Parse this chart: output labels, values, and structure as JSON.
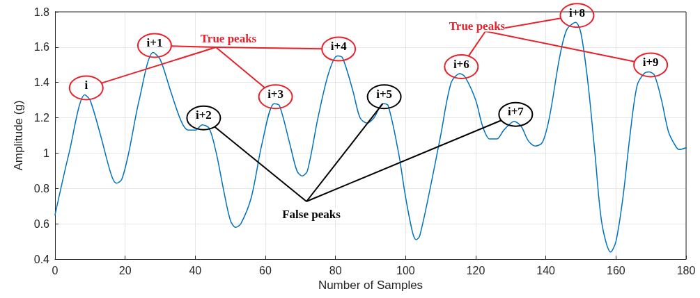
{
  "chart_data": {
    "type": "line",
    "xlabel": "Number of Samples",
    "ylabel": "Amplitude (g)",
    "x": [
      0,
      4,
      8.5,
      10,
      13,
      16,
      17.5,
      19,
      21,
      24,
      28,
      30,
      33,
      36,
      38,
      40,
      42,
      44,
      46,
      48,
      50,
      51.5,
      53,
      56,
      59,
      62.5,
      64,
      67,
      69,
      70.5,
      72,
      75,
      78,
      80.5,
      82,
      85,
      87,
      89,
      91,
      93.5,
      95,
      98,
      100,
      102,
      103,
      104,
      107,
      110,
      113,
      115.5,
      117,
      120,
      122,
      124,
      126,
      128,
      131,
      133,
      135,
      137,
      139,
      141,
      144,
      146,
      148.5,
      150,
      152,
      154,
      156,
      158.5,
      160,
      162,
      164,
      166,
      168,
      169.5,
      171,
      173,
      175,
      177,
      178,
      180
    ],
    "series": [
      {
        "color": "#0072bd",
        "values": [
          0.65,
          1.0,
          1.33,
          1.3,
          1.1,
          0.88,
          0.83,
          0.85,
          1.0,
          1.3,
          1.57,
          1.53,
          1.35,
          1.18,
          1.13,
          1.13,
          1.16,
          1.14,
          1.0,
          0.8,
          0.62,
          0.58,
          0.6,
          0.75,
          1.05,
          1.28,
          1.27,
          1.05,
          0.9,
          0.87,
          0.9,
          1.2,
          1.45,
          1.55,
          1.54,
          1.35,
          1.2,
          1.17,
          1.2,
          1.28,
          1.27,
          1.0,
          0.75,
          0.55,
          0.51,
          0.53,
          0.8,
          1.1,
          1.4,
          1.45,
          1.43,
          1.3,
          1.15,
          1.08,
          1.08,
          1.13,
          1.18,
          1.15,
          1.07,
          1.04,
          1.06,
          1.2,
          1.55,
          1.7,
          1.74,
          1.68,
          1.4,
          1.0,
          0.6,
          0.44,
          0.5,
          0.75,
          1.1,
          1.38,
          1.45,
          1.46,
          1.44,
          1.3,
          1.12,
          1.04,
          1.02,
          1.03
        ]
      }
    ],
    "xlim": [
      0,
      180
    ],
    "xticks": [
      0,
      20,
      40,
      60,
      80,
      100,
      120,
      140,
      160,
      180
    ],
    "ylim": [
      0.4,
      1.8
    ],
    "yticks": [
      0.4,
      0.6,
      0.8,
      1,
      1.2,
      1.4,
      1.6,
      1.8
    ],
    "grid": true,
    "marker": "none",
    "line_style": "solid",
    "annotations": [
      "True peaks",
      "True peaks",
      {
        "text": "False peaks",
        "x": 93.5,
        "y": 1.28
      },
      {
        "text": "i",
        "x": 8.5,
        "y": 1.33
      },
      {
        "text": "i+1",
        "x": 28,
        "y": 1.57
      },
      {
        "text": "i+2",
        "x": 42,
        "y": 1.16
      },
      {
        "text": "i+3",
        "x": 62.5,
        "y": 1.28
      },
      {
        "text": "i+4",
        "x": 80.5,
        "y": 1.55
      },
      {
        "text": "i+5",
        "x": 93.5,
        "y": 1.28
      },
      {
        "text": "i+6",
        "x": 115.5,
        "y": 1.45
      },
      {
        "text": "i+7",
        "x": 131,
        "y": 1.18
      },
      {
        "text": "i+8",
        "x": 148.5,
        "y": 1.74
      },
      {
        "text": "i+9",
        "x": 169.5,
        "y": 1.46
      }
    ]
  }
}
